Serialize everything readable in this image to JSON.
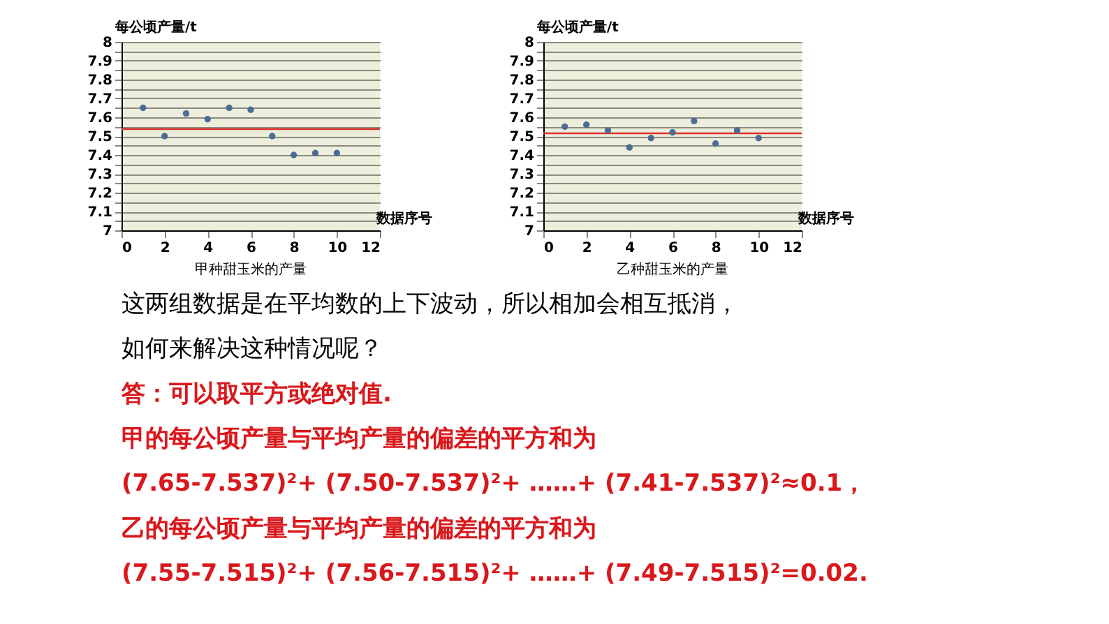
{
  "chart_data": [
    {
      "type": "scatter",
      "title": "甲种甜玉米的产量",
      "xlabel": "数据序号",
      "ylabel": "每公顷产量/t",
      "x": [
        1,
        2,
        3,
        4,
        5,
        6,
        7,
        8,
        9,
        10
      ],
      "series": [
        {
          "color": "#4a6c96",
          "values": [
            7.65,
            7.5,
            7.62,
            7.59,
            7.65,
            7.64,
            7.5,
            7.4,
            7.41,
            7.41
          ]
        }
      ],
      "xlim": [
        0,
        12
      ],
      "xticks": [
        0,
        2,
        4,
        6,
        8,
        10,
        12
      ],
      "ylim": [
        7,
        8
      ],
      "yticks": [
        7,
        {
          "value": 7.05,
          "label": null
        },
        7.1,
        {
          "value": 7.15,
          "label": null
        },
        7.2,
        {
          "value": 7.25,
          "label": null
        },
        7.3,
        {
          "value": 7.35,
          "label": null
        },
        7.4,
        {
          "value": 7.45,
          "label": null
        },
        7.5,
        {
          "value": 7.55,
          "label": null
        },
        7.6,
        {
          "value": 7.65,
          "label": null
        },
        7.7,
        {
          "value": 7.75,
          "label": null
        },
        7.8,
        {
          "value": 7.85,
          "label": null
        },
        7.9,
        {
          "value": 7.95,
          "label": null
        },
        8
      ],
      "ref_lines": [
        {
          "axis": "y",
          "value": 7.537,
          "color": "#e0322e"
        }
      ],
      "grid": "y",
      "marker": "circle"
    },
    {
      "type": "scatter",
      "title": "乙种甜玉米的产量",
      "xlabel": "数据序号",
      "ylabel": "每公顷产量/t",
      "x": [
        1,
        2,
        3,
        4,
        5,
        6,
        7,
        8,
        9,
        10
      ],
      "series": [
        {
          "color": "#4a6c96",
          "values": [
            7.55,
            7.56,
            7.53,
            7.44,
            7.49,
            7.52,
            7.58,
            7.46,
            7.53,
            7.49
          ]
        }
      ],
      "xlim": [
        0,
        12
      ],
      "xticks": [
        0,
        2,
        4,
        6,
        8,
        10,
        12
      ],
      "ylim": [
        7,
        8
      ],
      "yticks": [
        7,
        {
          "value": 7.05,
          "label": null
        },
        7.1,
        {
          "value": 7.15,
          "label": null
        },
        7.2,
        {
          "value": 7.25,
          "label": null
        },
        7.3,
        {
          "value": 7.35,
          "label": null
        },
        7.4,
        {
          "value": 7.45,
          "label": null
        },
        7.5,
        {
          "value": 7.55,
          "label": null
        },
        7.6,
        {
          "value": 7.65,
          "label": null
        },
        7.7,
        {
          "value": 7.75,
          "label": null
        },
        7.8,
        {
          "value": 7.85,
          "label": null
        },
        7.9,
        {
          "value": 7.95,
          "label": null
        },
        8
      ],
      "ref_lines": [
        {
          "axis": "y",
          "value": 7.515,
          "color": "#e0322e"
        }
      ],
      "grid": "y",
      "marker": "circle"
    },
    {
      "type": "other",
      "annotations": [
        "这两组数据是在平均数的上下波动，所以相加会相互抵消，",
        "如何来解决这种情况呢？",
        "答：可以取平方或绝对值.",
        "甲的每公顷产量与平均产量的偏差的平方和为",
        "(7.65-7.537)²+ (7.50-7.537)²+ ……+ (7.41-7.537)²≈0.1，",
        "乙的每公顷产量与平均产量的偏差的平方和为",
        "(7.55-7.515)²+ (7.56-7.515)²+ ……+ (7.49-7.515)²=0.02."
      ]
    }
  ]
}
